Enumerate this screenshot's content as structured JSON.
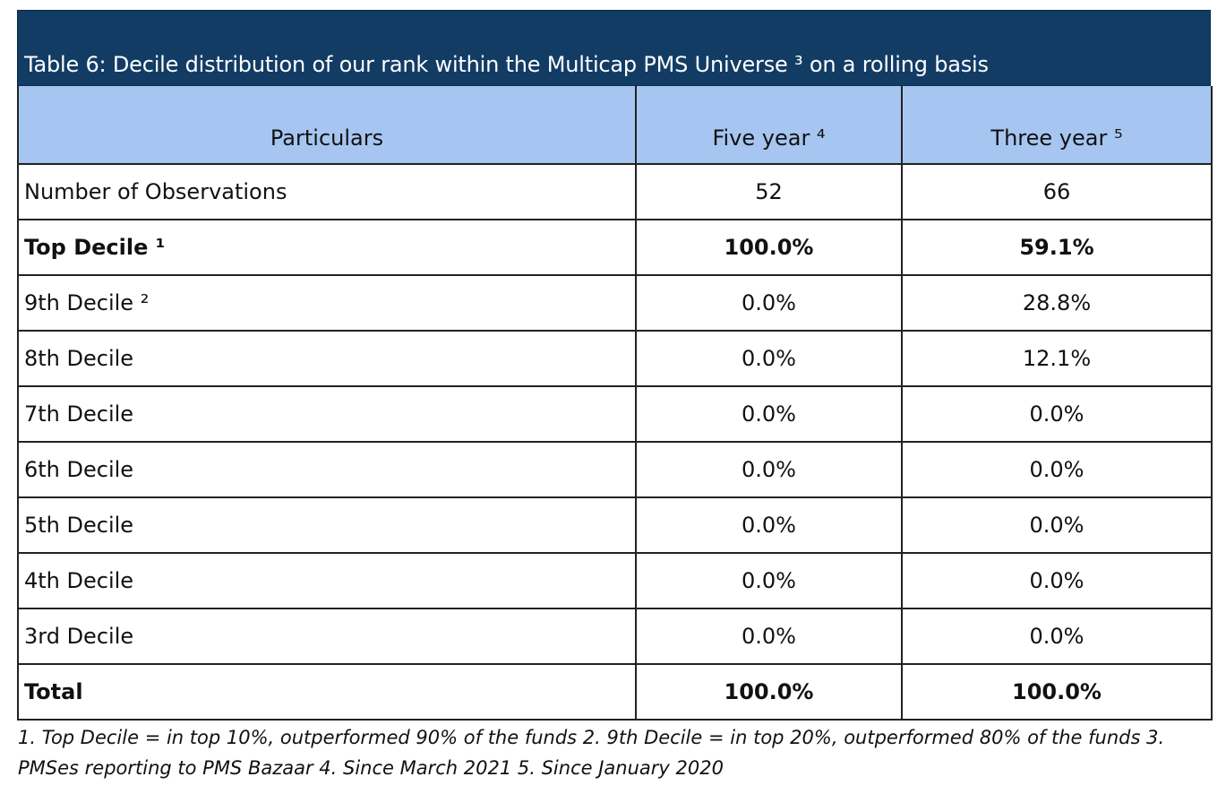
{
  "title": "Table 6: Decile distribution of our rank within the Multicap PMS Universe ³ on a rolling basis",
  "columns": [
    "Particulars",
    "Five year ⁴",
    "Three year ⁵"
  ],
  "rows": [
    {
      "label": "Number of Observations",
      "five_year": "52",
      "three_year": "66",
      "bold": false
    },
    {
      "label": "Top Decile ¹",
      "five_year": "100.0%",
      "three_year": "59.1%",
      "bold": true
    },
    {
      "label": "9th Decile ²",
      "five_year": "0.0%",
      "three_year": "28.8%",
      "bold": false
    },
    {
      "label": "8th Decile",
      "five_year": "0.0%",
      "three_year": "12.1%",
      "bold": false
    },
    {
      "label": "7th Decile",
      "five_year": "0.0%",
      "three_year": "0.0%",
      "bold": false
    },
    {
      "label": "6th Decile",
      "five_year": "0.0%",
      "three_year": "0.0%",
      "bold": false
    },
    {
      "label": "5th Decile",
      "five_year": "0.0%",
      "three_year": "0.0%",
      "bold": false
    },
    {
      "label": "4th Decile",
      "five_year": "0.0%",
      "three_year": "0.0%",
      "bold": false
    },
    {
      "label": "3rd Decile",
      "five_year": "0.0%",
      "three_year": "0.0%",
      "bold": false
    },
    {
      "label": "Total",
      "five_year": "100.0%",
      "three_year": "100.0%",
      "bold": true
    }
  ],
  "footnote": "1. Top Decile = in top 10%,  outperformed 90% of the funds 2. 9th Decile = in top 20%, outperformed 80% of the funds 3. PMSes reporting to PMS Bazaar 4. Since March 2021 5. Since January 2020",
  "colors": {
    "title_bg": "#123c64",
    "header_bg": "#a6c6f1",
    "border": "#222222"
  }
}
